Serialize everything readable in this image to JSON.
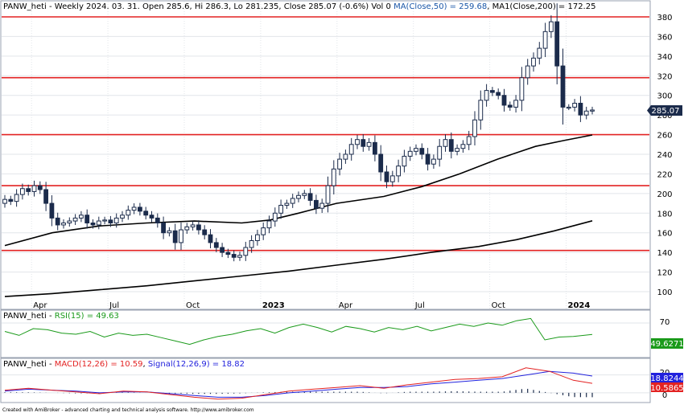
{
  "header": {
    "ticker": "PANW_heti",
    "period": "Weekly",
    "date": "2024. 03. 31.",
    "open": "Open 285.6",
    "high": "Hi 286.3",
    "low": "Lo 281.235",
    "close": "Close 285.07 (-0.6%)",
    "vol": "Vol 0",
    "ma50_label": "MA(Close,50) = 259.68",
    "ma200_label": "MA1(Close,200) = 172.25"
  },
  "colors": {
    "up_candle": "#ffffff",
    "down_candle": "#1b2b4b",
    "ma50": "#000000",
    "ma200": "#000000",
    "support_lines": "#e32222",
    "rsi": "#1a9a1a",
    "macd": "#e32222",
    "signal": "#2222dd",
    "price_badge": "#1b2b4b"
  },
  "price_panel": {
    "last_price_badge": "285.07",
    "y_ticks": [
      "380",
      "360",
      "340",
      "320",
      "300",
      "280",
      "260",
      "240",
      "220",
      "200",
      "180",
      "160",
      "140",
      "120",
      "100"
    ],
    "x_ticks": [
      "Apr",
      "Jul",
      "Oct",
      "2023",
      "Apr",
      "Jul",
      "Oct",
      "2024"
    ]
  },
  "rsi_panel": {
    "label_ticker": "PANW_heti - ",
    "label_name": "RSI(15) = 49.63",
    "y_ticks": [
      "70"
    ],
    "badge": "49.6271"
  },
  "macd_panel": {
    "label_ticker": "PANW_heti - ",
    "label_macd": "MACD(12,26) = 10.59",
    "label_sep": ", ",
    "label_signal": "Signal(12,26,9) = 18.82",
    "y_ticks": [
      "20",
      "0"
    ],
    "badge_signal": "18.8244",
    "badge_macd": "10.5865"
  },
  "footer": "Created with AmiBroker - advanced charting and technical analysis software. http://www.amibroker.com",
  "chart_data": [
    {
      "type": "candlestick",
      "title": "PANW_heti - Weekly 2024. 03. 31.",
      "ylim": [
        90,
        385
      ],
      "horizontal_lines": [
        380,
        318,
        260,
        208,
        142
      ],
      "close_series": [
        194,
        192,
        199,
        205,
        202,
        208,
        204,
        190,
        175,
        168,
        170,
        172,
        175,
        178,
        170,
        168,
        172,
        173,
        170,
        175,
        178,
        183,
        186,
        182,
        178,
        175,
        170,
        160,
        162,
        150,
        163,
        166,
        168,
        163,
        158,
        150,
        145,
        140,
        138,
        135,
        137,
        145,
        152,
        158,
        165,
        172,
        180,
        188,
        190,
        195,
        198,
        200,
        193,
        185,
        190,
        208,
        225,
        235,
        240,
        250,
        255,
        248,
        252,
        240,
        222,
        212,
        218,
        228,
        238,
        243,
        246,
        240,
        230,
        235,
        248,
        255,
        243,
        246,
        250,
        258,
        275,
        295,
        305,
        303,
        300,
        290,
        288,
        295,
        318,
        330,
        338,
        348,
        365,
        375,
        330,
        288,
        288,
        292,
        280,
        284,
        285.07
      ],
      "ma50_series": [
        [
          0,
          147
        ],
        [
          10,
          160
        ],
        [
          20,
          167
        ],
        [
          30,
          170
        ],
        [
          40,
          172
        ],
        [
          50,
          170
        ],
        [
          56,
          173
        ],
        [
          62,
          180
        ],
        [
          70,
          190
        ],
        [
          80,
          197
        ],
        [
          88,
          207
        ],
        [
          96,
          220
        ],
        [
          104,
          235
        ],
        [
          112,
          248
        ],
        [
          118,
          254
        ],
        [
          124,
          259.68
        ]
      ],
      "ma200_series": [
        [
          0,
          95
        ],
        [
          10,
          98
        ],
        [
          20,
          102
        ],
        [
          30,
          106
        ],
        [
          40,
          111
        ],
        [
          50,
          116
        ],
        [
          60,
          121
        ],
        [
          70,
          127
        ],
        [
          80,
          133
        ],
        [
          90,
          140
        ],
        [
          100,
          146
        ],
        [
          108,
          153
        ],
        [
          116,
          162
        ],
        [
          124,
          172.25
        ]
      ]
    },
    {
      "type": "line",
      "title": "RSI(15)",
      "ylim": [
        10,
        90
      ],
      "x": [
        0,
        3,
        6,
        9,
        12,
        15,
        18,
        21,
        24,
        27,
        30,
        33,
        36,
        39,
        42,
        45,
        48,
        51,
        54,
        57,
        60,
        63,
        66,
        69,
        72,
        75,
        78,
        81,
        84,
        87,
        90,
        93,
        96,
        99,
        102,
        105,
        108,
        111,
        114,
        117,
        120,
        124
      ],
      "values": [
        55,
        48,
        60,
        58,
        52,
        50,
        55,
        45,
        52,
        48,
        50,
        44,
        38,
        32,
        40,
        46,
        50,
        56,
        60,
        52,
        62,
        68,
        62,
        54,
        64,
        60,
        54,
        62,
        58,
        64,
        56,
        62,
        68,
        64,
        70,
        66,
        74,
        78,
        40,
        45,
        46,
        49.63
      ]
    },
    {
      "type": "line",
      "title": "MACD(12,26)",
      "ylim": [
        -10,
        35
      ],
      "series": [
        {
          "name": "MACD(12,26)",
          "x": [
            0,
            5,
            10,
            15,
            20,
            25,
            30,
            35,
            40,
            45,
            50,
            55,
            60,
            65,
            70,
            75,
            80,
            85,
            90,
            95,
            100,
            105,
            110,
            115,
            120,
            124
          ],
          "values": [
            3,
            5,
            3,
            1,
            -1,
            2,
            1,
            -2,
            -5,
            -7,
            -6,
            -2,
            2,
            4,
            6,
            8,
            5,
            9,
            12,
            15,
            16,
            18,
            28,
            24,
            14,
            10.59
          ]
        },
        {
          "name": "Signal(12,26,9)",
          "x": [
            0,
            5,
            10,
            15,
            20,
            25,
            30,
            35,
            40,
            45,
            50,
            55,
            60,
            65,
            70,
            75,
            80,
            85,
            90,
            95,
            100,
            105,
            110,
            115,
            120,
            124
          ],
          "values": [
            2,
            4,
            3,
            2,
            0,
            1,
            1,
            -1,
            -3,
            -5,
            -5,
            -3,
            0,
            2,
            4,
            6,
            6,
            7,
            10,
            12,
            14,
            16,
            20,
            24,
            22,
            18.82
          ]
        }
      ]
    }
  ]
}
